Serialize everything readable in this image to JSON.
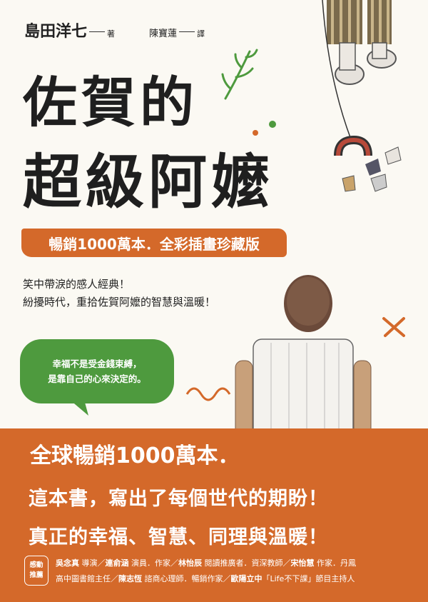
{
  "author": {
    "name": "島田洋七",
    "role": "著"
  },
  "translator": {
    "name": "陳寶蓮",
    "role": "譯"
  },
  "title": {
    "line1": "佐賀的",
    "line2": "超級阿嬤"
  },
  "banner": "暢銷1000萬本．全彩插畫珍藏版",
  "tagline": {
    "line1": "笑中帶淚的感人經典！",
    "line2": "紛擾時代，重拾佐賀阿嬤的智慧與溫暖！"
  },
  "bubble": {
    "line1": "幸福不是受金錢束縛，",
    "line2": "是靠自己的心來決定的。"
  },
  "headline": "全球暢銷1000萬本．",
  "big_line1": "這本書，寫出了每個世代的期盼！",
  "big_line2": "真正的幸福、智慧、同理與溫暖！",
  "endorse": {
    "badge_top": "感動",
    "badge_bottom": "推薦",
    "line1": [
      {
        "name": "吳念真",
        "desc": " 導演／"
      },
      {
        "name": "連俞涵",
        "desc": " 演員．作家／"
      },
      {
        "name": "林怡辰",
        "desc": " 閱讀推廣者．資深教師／"
      },
      {
        "name": "宋怡慧",
        "desc": " 作家．丹鳳"
      }
    ],
    "line2": [
      {
        "name": "",
        "desc": "高中圖書館主任／"
      },
      {
        "name": "陳志恆",
        "desc": " 諮商心理師．暢銷作家／"
      },
      {
        "name": "歐陽立中",
        "desc": "「Life不下課」節目主持人"
      }
    ]
  },
  "colors": {
    "orange": "#d4692a",
    "green": "#4e9a3e",
    "background": "#fbf9f3"
  }
}
